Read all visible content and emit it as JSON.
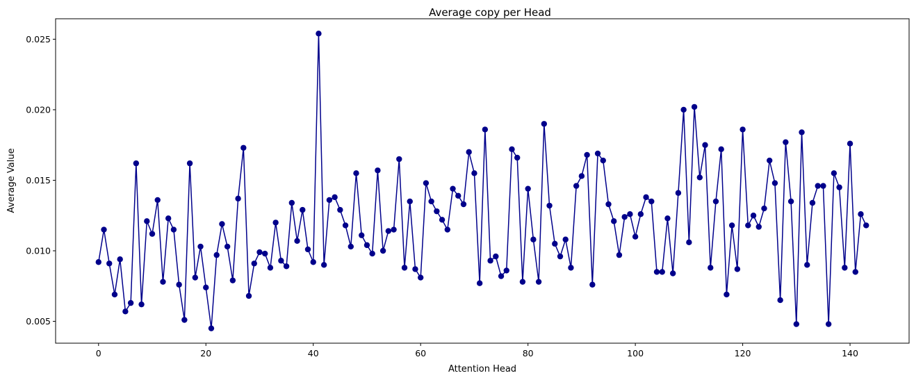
{
  "chart_data": {
    "type": "line",
    "title": "Average copy per Head",
    "xlabel": "Attention Head",
    "ylabel": "Average Value",
    "xlim": [
      -8,
      151
    ],
    "ylim": [
      0.00345,
      0.02645
    ],
    "xticks": [
      0,
      20,
      40,
      60,
      80,
      100,
      120,
      140
    ],
    "xtick_labels": [
      "0",
      "20",
      "40",
      "60",
      "80",
      "100",
      "120",
      "140"
    ],
    "yticks": [
      0.005,
      0.01,
      0.015,
      0.02,
      0.025
    ],
    "ytick_labels": [
      "0.005",
      "0.010",
      "0.015",
      "0.020",
      "0.025"
    ],
    "grid": false,
    "series": [
      {
        "name": "Average copy",
        "color": "#00008b",
        "marker": "circle",
        "x_start": 0,
        "values": [
          0.0092,
          0.0115,
          0.0091,
          0.0069,
          0.0094,
          0.0057,
          0.0063,
          0.0162,
          0.0062,
          0.0121,
          0.0112,
          0.0136,
          0.0078,
          0.0123,
          0.0115,
          0.0076,
          0.0051,
          0.0162,
          0.0081,
          0.0103,
          0.0074,
          0.0045,
          0.0097,
          0.0119,
          0.0103,
          0.0079,
          0.0137,
          0.0173,
          0.0068,
          0.0091,
          0.0099,
          0.0098,
          0.0088,
          0.012,
          0.0093,
          0.0089,
          0.0134,
          0.0107,
          0.0129,
          0.0101,
          0.0092,
          0.0254,
          0.009,
          0.0136,
          0.0138,
          0.0129,
          0.0118,
          0.0103,
          0.0155,
          0.0111,
          0.0104,
          0.0098,
          0.0157,
          0.01,
          0.0114,
          0.0115,
          0.0165,
          0.0088,
          0.0135,
          0.0087,
          0.0081,
          0.0148,
          0.0135,
          0.0128,
          0.0122,
          0.0115,
          0.0144,
          0.0139,
          0.0133,
          0.017,
          0.0155,
          0.0077,
          0.0186,
          0.0093,
          0.0096,
          0.0082,
          0.0086,
          0.0172,
          0.0166,
          0.0078,
          0.0144,
          0.0108,
          0.0078,
          0.019,
          0.0132,
          0.0105,
          0.0096,
          0.0108,
          0.0088,
          0.0146,
          0.0153,
          0.0168,
          0.0076,
          0.0169,
          0.0164,
          0.0133,
          0.0121,
          0.0097,
          0.0124,
          0.0126,
          0.011,
          0.0126,
          0.0138,
          0.0135,
          0.0085,
          0.0085,
          0.0123,
          0.0084,
          0.0141,
          0.02,
          0.0106,
          0.0202,
          0.0152,
          0.0175,
          0.0088,
          0.0135,
          0.0172,
          0.0069,
          0.0118,
          0.0087,
          0.0186,
          0.0118,
          0.0125,
          0.0117,
          0.013,
          0.0164,
          0.0148,
          0.0065,
          0.0177,
          0.0135,
          0.0048,
          0.0184,
          0.009,
          0.0134,
          0.0146,
          0.0146,
          0.0048,
          0.0155,
          0.0145,
          0.0088,
          0.0176,
          0.0085,
          0.0126,
          0.0118
        ]
      }
    ]
  }
}
